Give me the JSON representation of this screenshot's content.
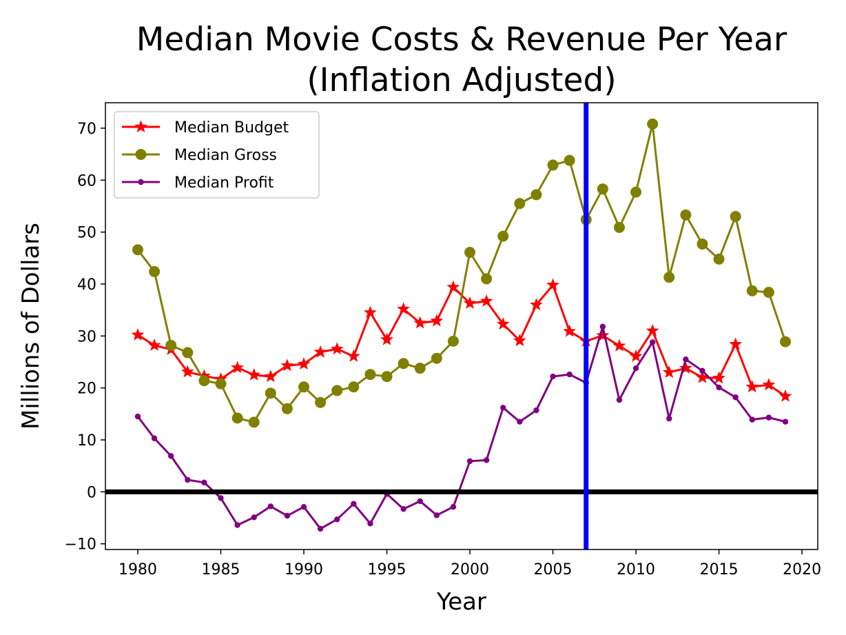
{
  "chart_data": {
    "type": "line",
    "title_line1": "Median Movie Costs & Revenue Per Year",
    "title_line2": "(Inflation Adjusted)",
    "xlabel": "Year",
    "ylabel": "Millions of Dollars",
    "xlim": [
      1978.05,
      2020.95
    ],
    "ylim": [
      -11.1,
      74.9
    ],
    "xticks": [
      1980,
      1985,
      1990,
      1995,
      2000,
      2005,
      2010,
      2015,
      2020
    ],
    "yticks": [
      -10,
      0,
      10,
      20,
      30,
      40,
      50,
      60,
      70
    ],
    "ytick_labels": [
      "−10",
      "0",
      "10",
      "20",
      "30",
      "40",
      "50",
      "60",
      "70"
    ],
    "legend_position": "upper left",
    "grid": false,
    "vline": {
      "x": 2007,
      "color": "#0000ff"
    },
    "hline": {
      "y": 0,
      "color": "#000000"
    },
    "x": [
      1980,
      1981,
      1982,
      1983,
      1984,
      1985,
      1986,
      1987,
      1988,
      1989,
      1990,
      1991,
      1992,
      1993,
      1994,
      1995,
      1996,
      1997,
      1998,
      1999,
      2000,
      2001,
      2002,
      2003,
      2004,
      2005,
      2006,
      2007,
      2008,
      2009,
      2010,
      2011,
      2012,
      2013,
      2014,
      2015,
      2016,
      2017,
      2018,
      2019
    ],
    "series": [
      {
        "name": "Median Budget",
        "color": "#ff0000",
        "marker": "star",
        "values": [
          30.2,
          28.2,
          27.4,
          23.1,
          22.3,
          21.7,
          23.9,
          22.5,
          22.2,
          24.3,
          24.6,
          26.9,
          27.5,
          26.1,
          34.5,
          29.3,
          35.2,
          32.5,
          32.9,
          39.4,
          36.3,
          36.7,
          32.3,
          29.1,
          36.0,
          39.8,
          30.9,
          29.0,
          30.1,
          28.1,
          26.1,
          31.0,
          23.0,
          23.8,
          22.0,
          21.9,
          28.4,
          20.2,
          20.6,
          18.4
        ]
      },
      {
        "name": "Median Gross",
        "color": "#808000",
        "marker": "circle",
        "values": [
          46.6,
          42.4,
          28.2,
          26.8,
          21.4,
          20.8,
          14.2,
          13.4,
          19.0,
          16.0,
          20.2,
          17.2,
          19.5,
          20.2,
          22.6,
          22.2,
          24.7,
          23.8,
          25.7,
          29.0,
          46.1,
          41.0,
          49.2,
          55.5,
          57.2,
          62.9,
          63.8,
          52.4,
          58.3,
          50.9,
          57.7,
          70.8,
          41.3,
          53.3,
          47.7,
          44.8,
          53.0,
          38.7,
          38.4,
          28.9
        ]
      },
      {
        "name": "Median Profit",
        "color": "#800080",
        "marker": "dot",
        "values": [
          14.5,
          10.3,
          6.9,
          2.3,
          1.8,
          -1.2,
          -6.4,
          -4.9,
          -2.8,
          -4.6,
          -2.9,
          -7.1,
          -5.3,
          -2.3,
          -6.1,
          -0.4,
          -3.3,
          -1.8,
          -4.5,
          -2.9,
          5.9,
          6.1,
          16.2,
          13.5,
          15.7,
          22.2,
          22.6,
          21.0,
          31.8,
          17.7,
          23.8,
          28.8,
          14.1,
          25.5,
          23.3,
          20.1,
          18.2,
          13.9,
          14.3,
          13.5
        ]
      }
    ]
  }
}
